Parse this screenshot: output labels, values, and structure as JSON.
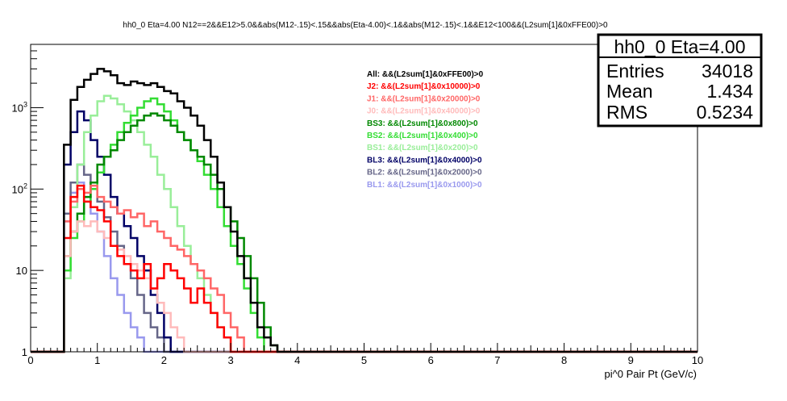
{
  "chart_data": {
    "type": "line",
    "title": "hh0_0 Eta=4.00 N12==2&&E12>5.0&&abs(M12-.15)<.15&&abs(Eta-4.00)<.1&&abs(M12-.15)<.1&&E12<100&&(L2sum[1]&0xFFE00)>0",
    "xlabel": "pi^0 Pair Pt (GeV/c)",
    "ylabel": "",
    "xlim": [
      0,
      10
    ],
    "ylim": [
      1,
      6000
    ],
    "log_y": true,
    "grid": false,
    "legend_position": "top-right",
    "x_ticks": [
      "0",
      "1",
      "2",
      "3",
      "4",
      "5",
      "6",
      "7",
      "8",
      "9",
      "10"
    ],
    "y_ticks": [
      {
        "value": 1,
        "label": "1"
      },
      {
        "value": 10,
        "label": "10"
      },
      {
        "value": 100,
        "label": "10^2"
      },
      {
        "value": 1000,
        "label": "10^3"
      }
    ],
    "bin_edges_start": 0,
    "bin_width": 0.1,
    "stats": {
      "name": "hh0_0 Eta=4.00",
      "rows": [
        {
          "label": "Entries",
          "value": "34018"
        },
        {
          "label": "Mean",
          "value": "1.434"
        },
        {
          "label": "RMS",
          "value": "0.5234"
        }
      ]
    },
    "series": [
      {
        "name": "All: &&(L2sum[1]&0xFFE00)>0",
        "color": "#000000",
        "values": [
          1,
          1,
          1,
          1,
          1,
          350,
          1250,
          1800,
          2200,
          2600,
          3000,
          2800,
          2500,
          2000,
          1900,
          2100,
          2000,
          1900,
          2000,
          1800,
          1600,
          1500,
          1200,
          1000,
          800,
          600,
          400,
          250,
          120,
          60,
          30,
          15,
          8,
          4,
          2,
          1.5,
          1.2,
          1,
          1,
          1,
          1,
          1,
          1,
          1,
          1,
          1,
          1,
          1,
          1,
          1,
          1,
          1,
          1,
          1,
          1,
          1,
          1,
          1,
          1,
          1,
          1,
          1,
          1,
          1,
          1,
          1,
          1,
          1,
          1,
          1,
          1,
          1,
          1,
          1,
          1,
          1,
          1,
          1,
          1,
          1,
          1,
          1,
          1,
          1,
          1,
          1,
          1,
          1,
          1,
          1,
          1,
          1,
          1,
          1,
          1,
          1,
          1,
          1,
          1,
          1
        ]
      },
      {
        "name": "J2: &&(L2sum[1]&0x10000)>0",
        "color": "#ff0000",
        "values": [
          1,
          1,
          1,
          1,
          1,
          25,
          80,
          110,
          70,
          60,
          55,
          40,
          20,
          15,
          12,
          10,
          8,
          12,
          6,
          8,
          12,
          10,
          8,
          6,
          4,
          6,
          4,
          3,
          2,
          1.5,
          1,
          1,
          1,
          1,
          1,
          1,
          1,
          1,
          1,
          1,
          1,
          1,
          1,
          1,
          1,
          1,
          1,
          1,
          1,
          1,
          1,
          1,
          1,
          1,
          1,
          1,
          1,
          1,
          1,
          1,
          1,
          1,
          1,
          1,
          1,
          1,
          1,
          1,
          1,
          1,
          1,
          1,
          1,
          1,
          1,
          1,
          1,
          1,
          1,
          1,
          1,
          1,
          1,
          1,
          1,
          1,
          1,
          1,
          1,
          1,
          1,
          1,
          1,
          1,
          1,
          1,
          1,
          1,
          1,
          1
        ]
      },
      {
        "name": "J1: &&(L2sum[1]&0x20000)>0",
        "color": "#ff6666",
        "values": [
          1,
          1,
          1,
          1,
          1,
          40,
          70,
          100,
          90,
          110,
          80,
          70,
          60,
          50,
          55,
          45,
          50,
          35,
          40,
          30,
          25,
          20,
          18,
          15,
          12,
          10,
          8,
          6,
          5,
          3,
          2,
          1.5,
          1,
          1,
          1,
          1,
          1,
          1,
          1,
          1,
          1,
          1,
          1,
          1,
          1,
          1,
          1,
          1,
          1,
          1,
          1,
          1,
          1,
          1,
          1,
          1,
          1,
          1,
          1,
          1,
          1,
          1,
          1,
          1,
          1,
          1,
          1,
          1,
          1,
          1,
          1,
          1,
          1,
          1,
          1,
          1,
          1,
          1,
          1,
          1,
          1,
          1,
          1,
          1,
          1,
          1,
          1,
          1,
          1,
          1,
          1,
          1,
          1,
          1,
          1,
          1,
          1,
          1,
          1,
          1
        ]
      },
      {
        "name": "J0: &&(L2sum[1]&0x40000)>0",
        "color": "#ffbbbb",
        "values": [
          1,
          1,
          1,
          1,
          1,
          15,
          30,
          40,
          35,
          40,
          30,
          25,
          20,
          18,
          15,
          12,
          10,
          8,
          6,
          4,
          3,
          2,
          1.5,
          1,
          1,
          1,
          1,
          1,
          1,
          1,
          1,
          1,
          1,
          1,
          1,
          1,
          1,
          1,
          1,
          1,
          1,
          1,
          1,
          1,
          1,
          1,
          1,
          1,
          1,
          1,
          1,
          1,
          1,
          1,
          1,
          1,
          1,
          1,
          1,
          1,
          1,
          1,
          1,
          1,
          1,
          1,
          1,
          1,
          1,
          1,
          1,
          1,
          1,
          1,
          1,
          1,
          1,
          1,
          1,
          1,
          1,
          1,
          1,
          1,
          1,
          1,
          1,
          1,
          1,
          1,
          1,
          1,
          1,
          1,
          1,
          1,
          1,
          1,
          1,
          1
        ]
      },
      {
        "name": "BS3: &&(L2sum[1]&0x800)>0",
        "color": "#008800",
        "values": [
          1,
          1,
          1,
          1,
          1,
          15,
          30,
          50,
          80,
          120,
          200,
          250,
          300,
          400,
          500,
          600,
          700,
          800,
          850,
          800,
          700,
          600,
          500,
          400,
          300,
          250,
          200,
          150,
          100,
          60,
          40,
          25,
          15,
          8,
          4,
          2,
          1.2,
          1,
          1,
          1,
          1,
          1,
          1,
          1,
          1,
          1,
          1,
          1,
          1,
          1,
          1,
          1,
          1,
          1,
          1,
          1,
          1,
          1,
          1,
          1,
          1,
          1,
          1,
          1,
          1,
          1,
          1,
          1,
          1,
          1,
          1,
          1,
          1,
          1,
          1,
          1,
          1,
          1,
          1,
          1,
          1,
          1,
          1,
          1,
          1,
          1,
          1,
          1,
          1,
          1,
          1,
          1,
          1,
          1,
          1,
          1,
          1,
          1,
          1,
          1
        ]
      },
      {
        "name": "BS2: &&(L2sum[1]&0x400)>0",
        "color": "#33dd33",
        "values": [
          1,
          1,
          1,
          1,
          1,
          10,
          25,
          40,
          70,
          100,
          160,
          250,
          350,
          500,
          650,
          800,
          1000,
          1200,
          1300,
          1100,
          900,
          700,
          500,
          400,
          300,
          220,
          150,
          100,
          60,
          35,
          20,
          12,
          6,
          3,
          1.5,
          1,
          1,
          1,
          1,
          1,
          1,
          1,
          1,
          1,
          1,
          1,
          1,
          1,
          1,
          1,
          1,
          1,
          1,
          1,
          1,
          1,
          1,
          1,
          1,
          1,
          1,
          1,
          1,
          1,
          1,
          1,
          1,
          1,
          1,
          1,
          1,
          1,
          1,
          1,
          1,
          1,
          1,
          1,
          1,
          1,
          1,
          1,
          1,
          1,
          1,
          1,
          1,
          1,
          1,
          1,
          1,
          1,
          1,
          1,
          1,
          1,
          1,
          1
        ]
      },
      {
        "name": "BS1: &&(L2sum[1]&0x200)>0",
        "color": "#99ee99",
        "values": [
          1,
          1,
          1,
          1,
          1,
          8,
          60,
          200,
          500,
          800,
          1200,
          1400,
          1300,
          1100,
          900,
          700,
          500,
          350,
          250,
          150,
          100,
          60,
          35,
          20,
          12,
          8,
          5,
          3,
          2,
          1.5,
          1,
          1,
          1,
          1,
          1,
          1,
          1,
          1,
          1,
          1,
          1,
          1,
          1,
          1,
          1,
          1,
          1,
          1,
          1,
          1,
          1,
          1,
          1,
          1,
          1,
          1,
          1,
          1,
          1,
          1,
          1,
          1,
          1,
          1,
          1,
          1,
          1,
          1,
          1,
          1,
          1,
          1,
          1,
          1,
          1,
          1,
          1,
          1,
          1,
          1,
          1,
          1,
          1,
          1,
          1,
          1,
          1,
          1,
          1,
          1,
          1,
          1,
          1,
          1,
          1,
          1,
          1,
          1,
          1,
          1
        ]
      },
      {
        "name": "BL3: &&(L2sum[1]&0x4000)>0",
        "color": "#000066",
        "values": [
          1,
          1,
          1,
          1,
          1,
          200,
          500,
          900,
          700,
          400,
          250,
          150,
          80,
          50,
          35,
          25,
          15,
          10,
          5,
          3,
          1.5,
          1,
          1,
          1,
          1,
          1,
          1,
          1,
          1,
          1,
          1,
          1,
          1,
          1,
          1,
          1,
          1,
          1,
          1,
          1,
          1,
          1,
          1,
          1,
          1,
          1,
          1,
          1,
          1,
          1,
          1,
          1,
          1,
          1,
          1,
          1,
          1,
          1,
          1,
          1,
          1,
          1,
          1,
          1,
          1,
          1,
          1,
          1,
          1,
          1,
          1,
          1,
          1,
          1,
          1,
          1,
          1,
          1,
          1,
          1,
          1,
          1,
          1,
          1,
          1,
          1,
          1,
          1,
          1,
          1,
          1,
          1,
          1,
          1,
          1,
          1,
          1,
          1,
          1,
          1
        ]
      },
      {
        "name": "BL2: &&(L2sum[1]&0x2000)>0",
        "color": "#666688",
        "values": [
          1,
          1,
          1,
          1,
          1,
          50,
          120,
          200,
          150,
          100,
          70,
          45,
          30,
          20,
          12,
          8,
          5,
          3,
          2,
          1.5,
          1,
          1,
          1,
          1,
          1,
          1,
          1,
          1,
          1,
          1,
          1,
          1,
          1,
          1,
          1,
          1,
          1,
          1,
          1,
          1,
          1,
          1,
          1,
          1,
          1,
          1,
          1,
          1,
          1,
          1,
          1,
          1,
          1,
          1,
          1,
          1,
          1,
          1,
          1,
          1,
          1,
          1,
          1,
          1,
          1,
          1,
          1,
          1,
          1,
          1,
          1,
          1,
          1,
          1,
          1,
          1,
          1,
          1,
          1,
          1,
          1,
          1,
          1,
          1,
          1,
          1,
          1,
          1,
          1,
          1,
          1,
          1,
          1,
          1,
          1,
          1,
          1,
          1,
          1,
          1
        ]
      },
      {
        "name": "BL1: &&(L2sum[1]&0x1000)>0",
        "color": "#9999ee",
        "values": [
          1,
          1,
          1,
          1,
          1,
          40,
          90,
          120,
          80,
          50,
          30,
          15,
          8,
          5,
          3,
          2,
          1.5,
          1,
          1,
          1,
          1,
          1,
          1,
          1,
          1,
          1,
          1,
          1,
          1,
          1,
          1,
          1,
          1,
          1,
          1,
          1,
          1,
          1,
          1,
          1,
          1,
          1,
          1,
          1,
          1,
          1,
          1,
          1,
          1,
          1,
          1,
          1,
          1,
          1,
          1,
          1,
          1,
          1,
          1,
          1,
          1,
          1,
          1,
          1,
          1,
          1,
          1,
          1,
          1,
          1,
          1,
          1,
          1,
          1,
          1,
          1,
          1,
          1,
          1,
          1,
          1,
          1,
          1,
          1,
          1,
          1,
          1,
          1,
          1,
          1,
          1,
          1,
          1,
          1,
          1,
          1,
          1,
          1,
          1,
          1
        ]
      }
    ]
  }
}
